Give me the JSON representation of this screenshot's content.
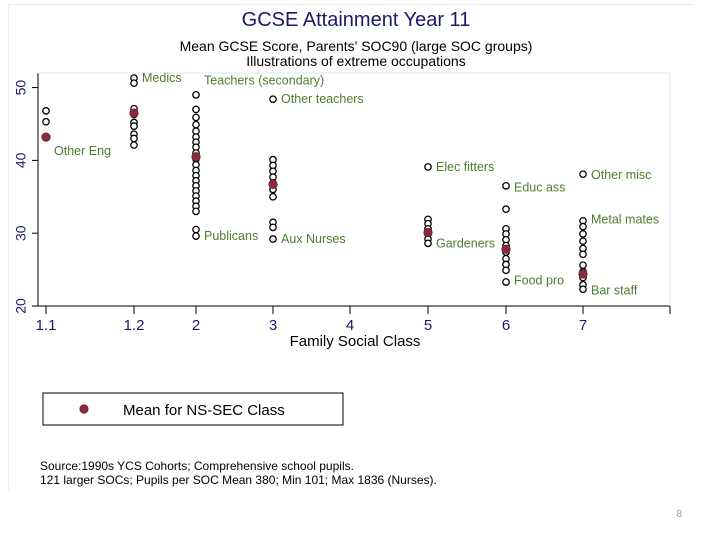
{
  "page_number": "8",
  "chart_data": {
    "type": "scatter",
    "title": "GCSE Attainment Year 11",
    "subtitle_lines": [
      "Mean GCSE Score, Parents' SOC90 (large SOC groups)",
      "Illustrations of extreme occupations"
    ],
    "xlabel": "Family Social Class",
    "ylabel": "",
    "x_ticks": [
      {
        "x": 1.1,
        "label": "1.1"
      },
      {
        "x": 1.2,
        "label": "1.2"
      },
      {
        "x": 2,
        "label": "2"
      },
      {
        "x": 3,
        "label": "3"
      },
      {
        "x": 4,
        "label": "4"
      },
      {
        "x": 5,
        "label": "5"
      },
      {
        "x": 6,
        "label": "6"
      },
      {
        "x": 7,
        "label": "7"
      }
    ],
    "y_ticks": [
      20,
      30,
      40,
      50
    ],
    "ylim": [
      20,
      52
    ],
    "grid": false,
    "colors": {
      "points": "#000000",
      "means": "#8c2b3d",
      "annotations": "#4a7e2e",
      "text": "#1a1a6a"
    },
    "series": [
      {
        "name": "Large SOC groups",
        "marker": "hollow-circle",
        "points": [
          {
            "x": 1.1,
            "y": [
              46.8,
              45.3
            ]
          },
          {
            "x": 1.2,
            "y": [
              51.3,
              50.6,
              47.1,
              46.3,
              45.2,
              44.7,
              43.6,
              43.0,
              42.1
            ]
          },
          {
            "x": 2,
            "y": [
              49.0,
              47.0,
              45.9,
              44.9,
              44.0,
              43.2,
              42.5,
              41.8,
              41.0,
              40.2,
              39.4,
              38.6,
              37.9,
              37.2,
              36.5,
              35.8,
              35.1,
              34.4,
              33.7,
              33.0,
              30.5,
              29.6
            ]
          },
          {
            "x": 3,
            "y": [
              48.4,
              40.1,
              39.3,
              38.5,
              37.7,
              36.9,
              36.0,
              35.0,
              31.5,
              30.8,
              29.2
            ]
          },
          {
            "x": 5,
            "y": [
              39.1,
              31.9,
              31.3,
              30.6,
              29.9,
              29.2,
              28.6
            ]
          },
          {
            "x": 6,
            "y": [
              36.5,
              33.3,
              30.6,
              29.9,
              29.1,
              28.3,
              27.4,
              26.5,
              25.7,
              24.9,
              23.3
            ]
          },
          {
            "x": 7,
            "y": [
              38.1,
              31.7,
              30.9,
              29.9,
              28.9,
              27.9,
              27.1,
              25.6,
              24.7,
              23.9,
              22.9,
              22.3
            ]
          }
        ]
      },
      {
        "name": "Mean for NS-SEC Class",
        "marker": "filled-circle",
        "points": [
          {
            "x": 1.1,
            "y": 43.2
          },
          {
            "x": 1.2,
            "y": 46.5
          },
          {
            "x": 2,
            "y": 40.5
          },
          {
            "x": 3,
            "y": 36.7
          },
          {
            "x": 5,
            "y": 30.1
          },
          {
            "x": 6,
            "y": 27.8
          },
          {
            "x": 7,
            "y": 24.4
          }
        ]
      }
    ],
    "annotations": [
      {
        "text": "Medics",
        "x": 1.2,
        "y": 51.3,
        "side": "right"
      },
      {
        "text": "Teachers (secondary)",
        "x": 2,
        "y": 49.9,
        "side": "right",
        "offset": "above"
      },
      {
        "text": "Other teachers",
        "x": 3,
        "y": 48.4,
        "side": "right"
      },
      {
        "text": "Other Eng",
        "x": 1.1,
        "y": 42.1,
        "side": "right",
        "offset": "below"
      },
      {
        "text": "Elec fitters",
        "x": 5,
        "y": 39.1,
        "side": "right"
      },
      {
        "text": "Educ ass",
        "x": 6,
        "y": 36.3,
        "side": "right"
      },
      {
        "text": "Other misc",
        "x": 7,
        "y": 38.0,
        "side": "right"
      },
      {
        "text": "Metal mates",
        "x": 7,
        "y": 31.9,
        "side": "right"
      },
      {
        "text": "Publicans",
        "x": 2,
        "y": 29.6,
        "side": "right"
      },
      {
        "text": "Aux Nurses",
        "x": 3,
        "y": 29.2,
        "side": "right"
      },
      {
        "text": "Gardeners",
        "x": 5,
        "y": 28.6,
        "side": "right"
      },
      {
        "text": "Food pro",
        "x": 6,
        "y": 23.5,
        "side": "right"
      },
      {
        "text": "Bar staff",
        "x": 7,
        "y": 22.1,
        "side": "right"
      }
    ],
    "legend": {
      "position": "bottom-left",
      "label": "Mean for NS-SEC Class"
    },
    "notes": [
      "Source:1990s YCS Cohorts; Comprehensive school pupils.",
      "121 larger SOCs; Pupils per SOC Mean 380; Min 101; Max 1836 (Nurses)."
    ]
  }
}
